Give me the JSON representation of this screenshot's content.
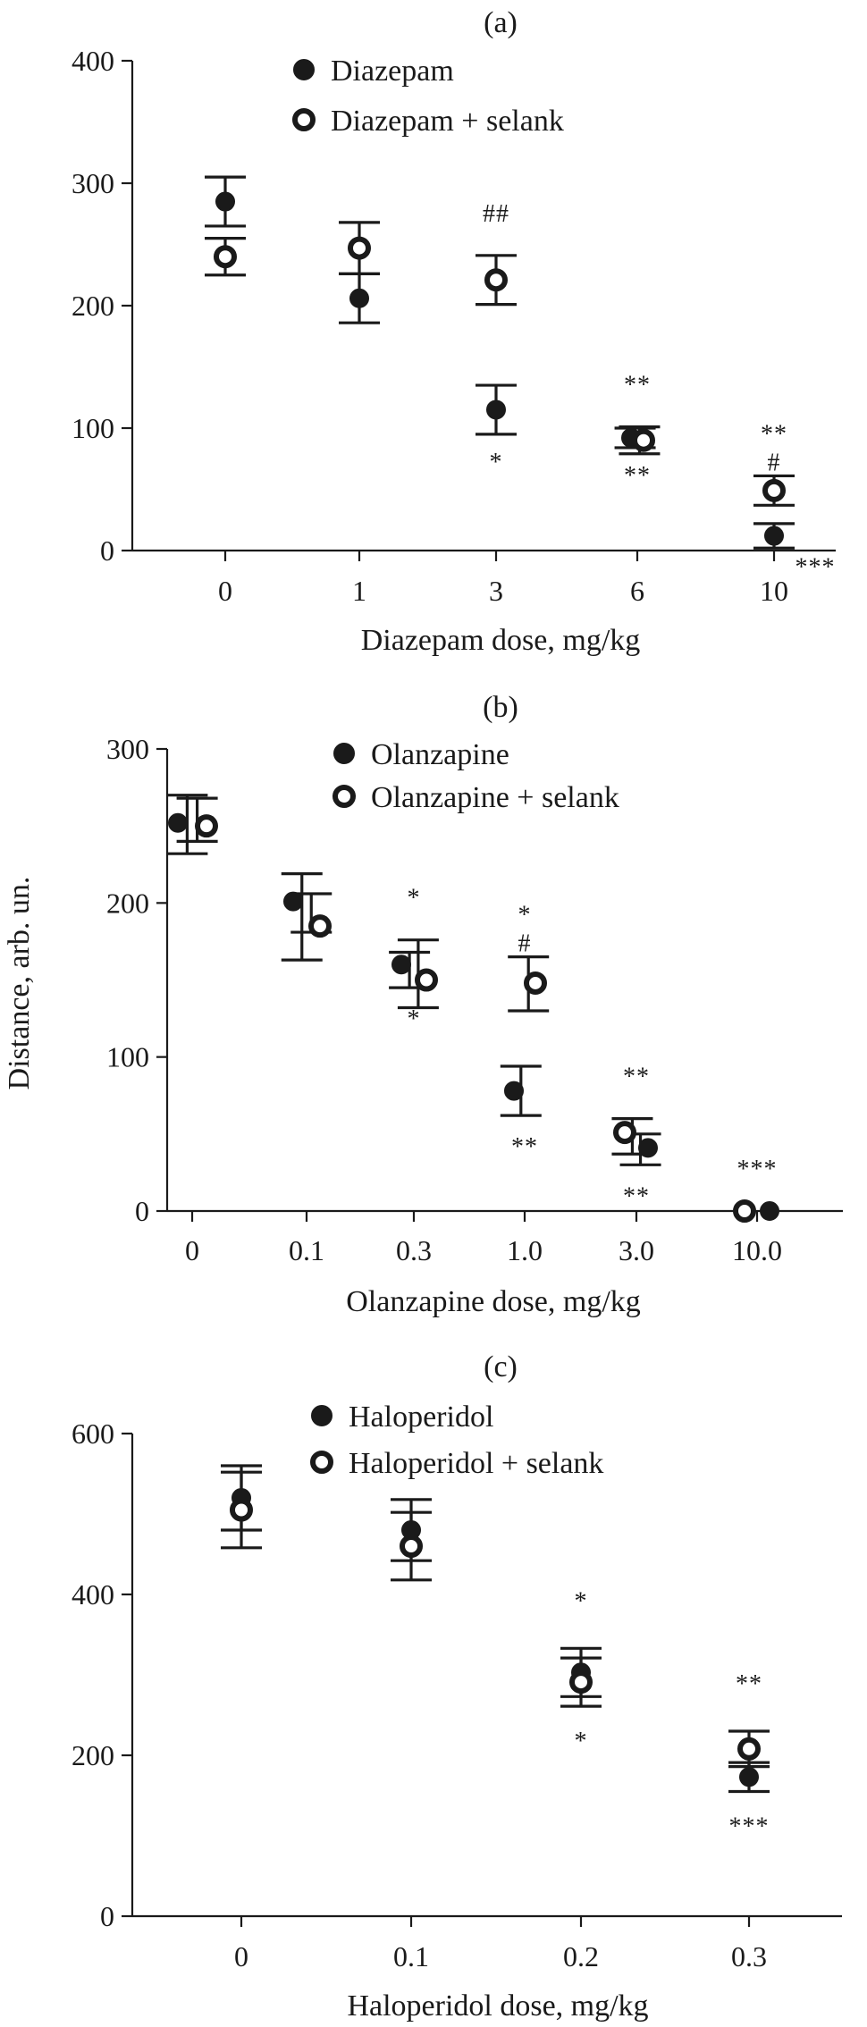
{
  "figure": {
    "y_axis_label": "Distance, arb. un."
  },
  "chart_data": [
    {
      "type": "scatter",
      "panel_label": "(a)",
      "xlabel": "Diazepam dose, mg/kg",
      "ylabel": "Distance, arb. un.",
      "categories": [
        "0",
        "1",
        "3",
        "6",
        "10"
      ],
      "ylim": [
        0,
        400
      ],
      "yticks": [
        "0",
        "100",
        "200",
        "300",
        "400"
      ],
      "legend_position": "top-center",
      "series": [
        {
          "name": "Diazepam",
          "marker": "filled-circle",
          "values": [
            285,
            206,
            115,
            92,
            12
          ],
          "error_high": [
            305,
            226,
            135,
            100,
            22
          ],
          "error_low": [
            265,
            186,
            95,
            84,
            2
          ]
        },
        {
          "name": "Diazepam + selank",
          "marker": "open-circle",
          "values": [
            240,
            247,
            221,
            90,
            49
          ],
          "error_high": [
            255,
            268,
            241,
            101,
            61
          ],
          "error_low": [
            225,
            226,
            201,
            79,
            37
          ]
        }
      ],
      "annotations": [
        {
          "text": "##",
          "category": "3",
          "series": "Diazepam + selank",
          "where": "above"
        },
        {
          "text": "*",
          "category": "3",
          "series": "Diazepam",
          "where": "below"
        },
        {
          "text": "**",
          "category": "6",
          "series": "Diazepam + selank",
          "where": "above"
        },
        {
          "text": "**",
          "category": "6",
          "series": "Diazepam",
          "where": "below"
        },
        {
          "text": "**",
          "category": "10",
          "series": "Diazepam + selank",
          "where": "above"
        },
        {
          "text": "#",
          "category": "10",
          "series": "Diazepam + selank",
          "where": "above-near"
        },
        {
          "text": "***",
          "category": "10",
          "series": "Diazepam",
          "where": "below-right"
        }
      ]
    },
    {
      "type": "scatter",
      "panel_label": "(b)",
      "xlabel": "Olanzapine dose, mg/kg",
      "ylabel": "Distance, arb. un.",
      "categories": [
        "0",
        "0.1",
        "0.3",
        "1.0",
        "3.0",
        "10.0"
      ],
      "ylim": [
        0,
        300
      ],
      "yticks": [
        "0",
        "100",
        "200",
        "300"
      ],
      "legend_position": "top-center",
      "series": [
        {
          "name": "Olanzapine",
          "marker": "filled-circle",
          "values": [
            252,
            201,
            160,
            78,
            41,
            0
          ],
          "error_high": [
            270,
            219,
            168,
            94,
            50,
            0
          ],
          "error_low": [
            232,
            163,
            145,
            62,
            30,
            0
          ]
        },
        {
          "name": "Olanzapine + selank",
          "marker": "open-circle",
          "values": [
            250,
            185,
            150,
            148,
            51,
            0
          ],
          "error_high": [
            268,
            206,
            176,
            165,
            60,
            0
          ],
          "error_low": [
            240,
            181,
            132,
            130,
            37,
            0
          ]
        }
      ],
      "annotations": [
        {
          "text": "*",
          "category": "0.3",
          "series": "Olanzapine + selank",
          "where": "above"
        },
        {
          "text": "*",
          "category": "0.3",
          "series": "Olanzapine",
          "where": "below"
        },
        {
          "text": "*",
          "category": "1.0",
          "series": "Olanzapine + selank",
          "where": "above"
        },
        {
          "text": "#",
          "category": "1.0",
          "series": "Olanzapine + selank",
          "where": "above-near"
        },
        {
          "text": "**",
          "category": "1.0",
          "series": "Olanzapine",
          "where": "below"
        },
        {
          "text": "**",
          "category": "3.0",
          "series": "Olanzapine + selank",
          "where": "above"
        },
        {
          "text": "**",
          "category": "3.0",
          "series": "Olanzapine",
          "where": "below"
        },
        {
          "text": "***",
          "category": "10.0",
          "series": "Olanzapine",
          "where": "above"
        }
      ]
    },
    {
      "type": "scatter",
      "panel_label": "(c)",
      "xlabel": "Haloperidol dose, mg/kg",
      "ylabel": "Distance, arb. un.",
      "categories": [
        "0",
        "0.1",
        "0.2",
        "0.3"
      ],
      "ylim": [
        0,
        600
      ],
      "yticks": [
        "0",
        "200",
        "400",
        "600"
      ],
      "legend_position": "top-center",
      "series": [
        {
          "name": "Haloperidol",
          "marker": "filled-circle",
          "values": [
            520,
            480,
            303,
            173
          ],
          "error_high": [
            560,
            518,
            333,
            191
          ],
          "error_low": [
            480,
            442,
            273,
            155
          ]
        },
        {
          "name": "Haloperidol + selank",
          "marker": "open-circle",
          "values": [
            505,
            460,
            291,
            208
          ],
          "error_high": [
            552,
            502,
            321,
            230
          ],
          "error_low": [
            458,
            418,
            261,
            186
          ]
        }
      ],
      "annotations": [
        {
          "text": "*",
          "category": "0.2",
          "series": "Haloperidol",
          "where": "above"
        },
        {
          "text": "*",
          "category": "0.2",
          "series": "Haloperidol + selank",
          "where": "below"
        },
        {
          "text": "**",
          "category": "0.3",
          "series": "Haloperidol + selank",
          "where": "above"
        },
        {
          "text": "***",
          "category": "0.3",
          "series": "Haloperidol",
          "where": "below"
        }
      ]
    }
  ]
}
